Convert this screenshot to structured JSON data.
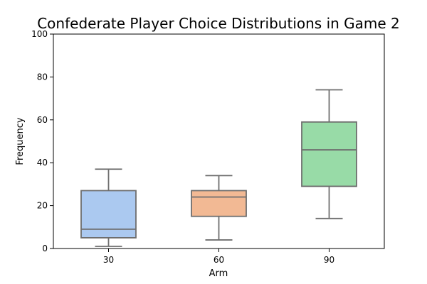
{
  "chart_data": {
    "type": "box",
    "title": "Confederate Player Choice Distributions in Game 2",
    "xlabel": "Arm",
    "ylabel": "Frequency",
    "ylim": [
      0,
      100
    ],
    "yticks": [
      0,
      20,
      40,
      60,
      80,
      100
    ],
    "categories": [
      "30",
      "60",
      "90"
    ],
    "grid": false,
    "boxes": [
      {
        "category": "30",
        "whisker_low": 1,
        "q1": 5,
        "median": 9,
        "q3": 27,
        "whisker_high": 37,
        "color": "#abc9f0"
      },
      {
        "category": "60",
        "whisker_low": 4,
        "q1": 15,
        "median": 24,
        "q3": 27,
        "whisker_high": 34,
        "color": "#f2b994"
      },
      {
        "category": "90",
        "whisker_low": 14,
        "q1": 29,
        "median": 46,
        "q3": 59,
        "whisker_high": 74,
        "color": "#98dba7"
      }
    ]
  }
}
